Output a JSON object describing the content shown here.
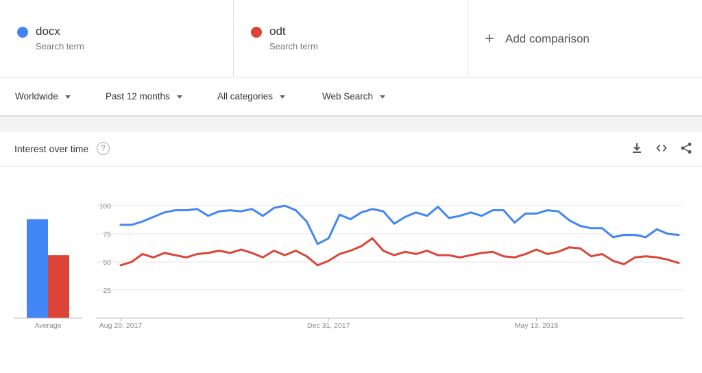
{
  "terms": [
    {
      "name": "docx",
      "sub": "Search term",
      "color": "#4285f4"
    },
    {
      "name": "odt",
      "sub": "Search term",
      "color": "#db4437"
    }
  ],
  "add_comparison": "Add comparison",
  "filters": {
    "region": "Worldwide",
    "period": "Past 12 months",
    "category": "All categories",
    "search_type": "Web Search"
  },
  "card": {
    "title": "Interest over time",
    "help": "?"
  },
  "icons": {
    "download": "download-icon",
    "embed": "embed-code-icon",
    "share": "share-icon",
    "help": "help-circle-icon",
    "add": "plus-icon"
  },
  "chart_data": {
    "type": "line",
    "y_ticks": [
      "100",
      "75",
      "50",
      "25"
    ],
    "ylim": [
      0,
      100
    ],
    "x_tick_labels": [
      "Aug 20, 2017",
      "Dec 31, 2017",
      "May 13, 2018"
    ],
    "average_label": "Average",
    "averages": [
      {
        "name": "docx",
        "value": 88,
        "color": "#4285f4"
      },
      {
        "name": "odt",
        "value": 56,
        "color": "#db4437"
      }
    ],
    "series": [
      {
        "name": "docx",
        "color": "#4285f4",
        "values": [
          83,
          83,
          86,
          90,
          94,
          96,
          96,
          97,
          91,
          95,
          96,
          95,
          97,
          91,
          98,
          100,
          96,
          86,
          66,
          71,
          92,
          88,
          94,
          97,
          95,
          84,
          90,
          94,
          91,
          99,
          89,
          91,
          94,
          91,
          96,
          96,
          85,
          93,
          93,
          96,
          95,
          87,
          82,
          80,
          80,
          72,
          74,
          74,
          72,
          79,
          75,
          74
        ]
      },
      {
        "name": "odt",
        "color": "#db4437",
        "values": [
          47,
          50,
          57,
          54,
          58,
          56,
          54,
          57,
          58,
          60,
          58,
          61,
          58,
          54,
          60,
          56,
          60,
          55,
          47,
          51,
          57,
          60,
          64,
          71,
          60,
          56,
          59,
          57,
          60,
          56,
          56,
          54,
          56,
          58,
          59,
          55,
          54,
          57,
          61,
          57,
          59,
          63,
          62,
          55,
          57,
          51,
          48,
          54,
          55,
          54,
          52,
          49
        ]
      }
    ]
  }
}
